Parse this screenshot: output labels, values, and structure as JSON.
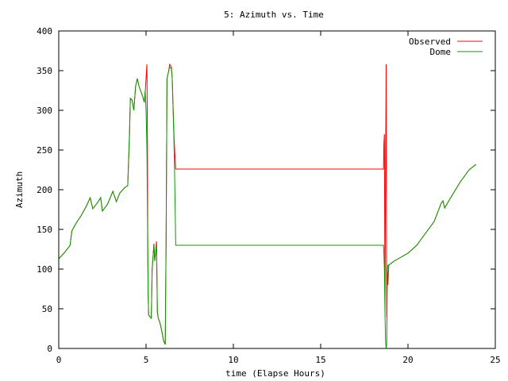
{
  "chart_data": {
    "type": "line",
    "title": "5: Azimuth vs. Time",
    "xlabel": "time (Elapse Hours)",
    "ylabel": "Azimuth",
    "xlim": [
      0,
      25
    ],
    "ylim": [
      0,
      400
    ],
    "xticks": [
      0,
      5,
      10,
      15,
      20,
      25
    ],
    "yticks": [
      0,
      50,
      100,
      150,
      200,
      250,
      300,
      350,
      400
    ],
    "grid": false,
    "legend_position": "top-right",
    "series": [
      {
        "name": "Observed",
        "color": "#ff0000",
        "points": [
          [
            0,
            113
          ],
          [
            0.3,
            120
          ],
          [
            0.65,
            130
          ],
          [
            0.75,
            148
          ],
          [
            1.0,
            158
          ],
          [
            1.3,
            168
          ],
          [
            1.6,
            180
          ],
          [
            1.8,
            190
          ],
          [
            1.95,
            176
          ],
          [
            2.2,
            183
          ],
          [
            2.4,
            190
          ],
          [
            2.5,
            173
          ],
          [
            2.8,
            182
          ],
          [
            3.1,
            198
          ],
          [
            3.3,
            185
          ],
          [
            3.5,
            196
          ],
          [
            3.8,
            203
          ],
          [
            3.95,
            205
          ],
          [
            4.05,
            265
          ],
          [
            4.1,
            315
          ],
          [
            4.2,
            313
          ],
          [
            4.3,
            300
          ],
          [
            4.4,
            330
          ],
          [
            4.5,
            340
          ],
          [
            4.6,
            330
          ],
          [
            4.8,
            318
          ],
          [
            4.9,
            310
          ],
          [
            4.95,
            322
          ],
          [
            5.0,
            340
          ],
          [
            5.05,
            358
          ],
          [
            5.08,
            250
          ],
          [
            5.1,
            122
          ],
          [
            5.12,
            70
          ],
          [
            5.15,
            42
          ],
          [
            5.3,
            38
          ],
          [
            5.35,
            100
          ],
          [
            5.45,
            132
          ],
          [
            5.5,
            110
          ],
          [
            5.55,
            122
          ],
          [
            5.6,
            135
          ],
          [
            5.65,
            45
          ],
          [
            5.7,
            38
          ],
          [
            5.8,
            32
          ],
          [
            5.9,
            22
          ],
          [
            6.0,
            10
          ],
          [
            6.1,
            5
          ],
          [
            6.15,
            140
          ],
          [
            6.2,
            340
          ],
          [
            6.3,
            350
          ],
          [
            6.35,
            358
          ],
          [
            6.45,
            355
          ],
          [
            6.5,
            340
          ],
          [
            6.6,
            268
          ],
          [
            6.65,
            245
          ],
          [
            6.7,
            226
          ],
          [
            18.6,
            226
          ],
          [
            18.62,
            258
          ],
          [
            18.65,
            270
          ],
          [
            18.68,
            45
          ],
          [
            18.72,
            230
          ],
          [
            18.75,
            358
          ],
          [
            18.78,
            40
          ],
          [
            18.82,
            100
          ],
          [
            18.85,
            80
          ],
          [
            18.9,
            105
          ],
          [
            19.2,
            110
          ],
          [
            19.6,
            115
          ],
          [
            20.0,
            120
          ],
          [
            20.5,
            130
          ],
          [
            21.0,
            145
          ],
          [
            21.5,
            160
          ],
          [
            21.9,
            183
          ],
          [
            22.0,
            186
          ],
          [
            22.1,
            177
          ],
          [
            22.5,
            192
          ],
          [
            23.0,
            210
          ],
          [
            23.5,
            225
          ],
          [
            23.9,
            232
          ]
        ]
      },
      {
        "name": "Dome",
        "color": "#00a000",
        "points": [
          [
            0,
            113
          ],
          [
            0.3,
            120
          ],
          [
            0.65,
            130
          ],
          [
            0.75,
            148
          ],
          [
            1.0,
            158
          ],
          [
            1.3,
            168
          ],
          [
            1.6,
            180
          ],
          [
            1.8,
            190
          ],
          [
            1.95,
            176
          ],
          [
            2.2,
            183
          ],
          [
            2.4,
            190
          ],
          [
            2.5,
            173
          ],
          [
            2.8,
            182
          ],
          [
            3.1,
            198
          ],
          [
            3.3,
            185
          ],
          [
            3.5,
            196
          ],
          [
            3.8,
            203
          ],
          [
            3.95,
            205
          ],
          [
            4.05,
            270
          ],
          [
            4.1,
            315
          ],
          [
            4.2,
            313
          ],
          [
            4.3,
            300
          ],
          [
            4.4,
            330
          ],
          [
            4.5,
            340
          ],
          [
            4.6,
            330
          ],
          [
            4.8,
            318
          ],
          [
            4.9,
            310
          ],
          [
            4.95,
            325
          ],
          [
            5.0,
            300
          ],
          [
            5.05,
            252
          ],
          [
            5.1,
            125
          ],
          [
            5.12,
            70
          ],
          [
            5.15,
            42
          ],
          [
            5.3,
            38
          ],
          [
            5.35,
            100
          ],
          [
            5.45,
            130
          ],
          [
            5.5,
            110
          ],
          [
            5.55,
            122
          ],
          [
            5.6,
            130
          ],
          [
            5.65,
            45
          ],
          [
            5.7,
            38
          ],
          [
            5.8,
            32
          ],
          [
            5.9,
            22
          ],
          [
            6.0,
            10
          ],
          [
            6.1,
            5
          ],
          [
            6.15,
            140
          ],
          [
            6.2,
            340
          ],
          [
            6.3,
            350
          ],
          [
            6.35,
            355
          ],
          [
            6.45,
            352
          ],
          [
            6.5,
            340
          ],
          [
            6.6,
            260
          ],
          [
            6.65,
            200
          ],
          [
            6.7,
            130
          ],
          [
            18.6,
            130
          ],
          [
            18.62,
            120
          ],
          [
            18.65,
            100
          ],
          [
            18.68,
            45
          ],
          [
            18.72,
            8
          ],
          [
            18.75,
            0
          ],
          [
            18.78,
            5
          ],
          [
            18.82,
            100
          ],
          [
            18.85,
            105
          ],
          [
            18.9,
            105
          ],
          [
            19.2,
            110
          ],
          [
            19.6,
            115
          ],
          [
            20.0,
            120
          ],
          [
            20.5,
            130
          ],
          [
            21.0,
            145
          ],
          [
            21.5,
            160
          ],
          [
            21.9,
            183
          ],
          [
            22.0,
            186
          ],
          [
            22.1,
            177
          ],
          [
            22.5,
            192
          ],
          [
            23.0,
            210
          ],
          [
            23.5,
            225
          ],
          [
            23.9,
            232
          ]
        ]
      }
    ]
  }
}
